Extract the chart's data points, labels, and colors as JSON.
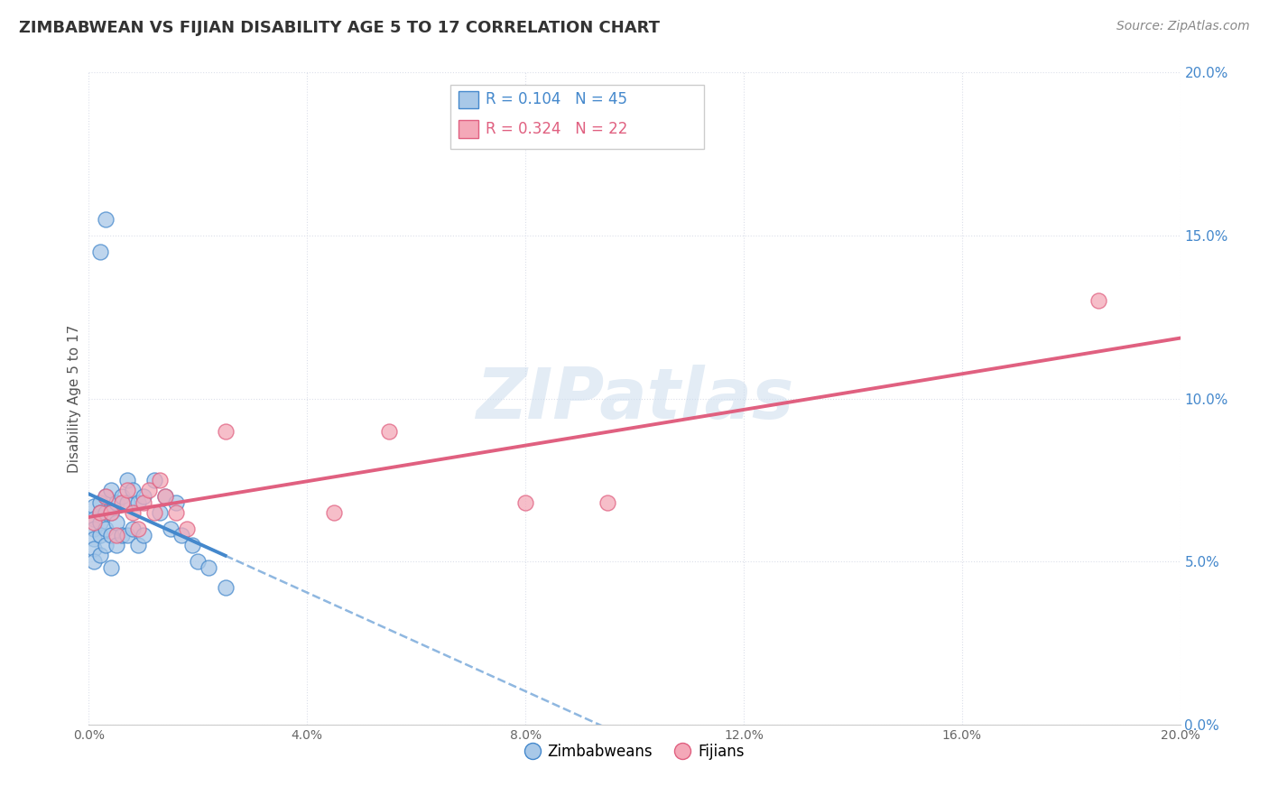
{
  "title": "ZIMBABWEAN VS FIJIAN DISABILITY AGE 5 TO 17 CORRELATION CHART",
  "source": "Source: ZipAtlas.com",
  "ylabel": "Disability Age 5 to 17",
  "xlim": [
    0.0,
    0.2
  ],
  "ylim": [
    0.0,
    0.2
  ],
  "xticks": [
    0.0,
    0.04,
    0.08,
    0.12,
    0.16,
    0.2
  ],
  "yticks": [
    0.0,
    0.05,
    0.1,
    0.15,
    0.2
  ],
  "zimbabwean_color": "#a8c8e8",
  "fijian_color": "#f4a8b8",
  "trend_zimbabwean_color": "#4488cc",
  "trend_fijian_color": "#e06080",
  "r_zimbabwean": 0.104,
  "n_zimbabwean": 45,
  "r_fijian": 0.324,
  "n_fijian": 22,
  "watermark": "ZIPatlas",
  "background_color": "#ffffff",
  "grid_color": "#d8dce8",
  "zimbabwean_x": [
    0.001,
    0.001,
    0.001,
    0.001,
    0.001,
    0.001,
    0.002,
    0.002,
    0.002,
    0.002,
    0.002,
    0.003,
    0.003,
    0.003,
    0.003,
    0.004,
    0.004,
    0.004,
    0.004,
    0.005,
    0.005,
    0.005,
    0.006,
    0.006,
    0.007,
    0.007,
    0.007,
    0.008,
    0.008,
    0.009,
    0.009,
    0.01,
    0.01,
    0.012,
    0.013,
    0.014,
    0.015,
    0.016,
    0.017,
    0.019,
    0.02,
    0.022,
    0.025,
    0.003,
    0.002
  ],
  "zimbabwean_y": [
    0.067,
    0.063,
    0.06,
    0.057,
    0.054,
    0.05,
    0.068,
    0.065,
    0.062,
    0.058,
    0.052,
    0.07,
    0.065,
    0.06,
    0.055,
    0.072,
    0.065,
    0.058,
    0.048,
    0.068,
    0.062,
    0.055,
    0.07,
    0.058,
    0.075,
    0.068,
    0.058,
    0.072,
    0.06,
    0.068,
    0.055,
    0.07,
    0.058,
    0.075,
    0.065,
    0.07,
    0.06,
    0.068,
    0.058,
    0.055,
    0.05,
    0.048,
    0.042,
    0.155,
    0.145
  ],
  "fijian_x": [
    0.001,
    0.002,
    0.003,
    0.004,
    0.005,
    0.006,
    0.007,
    0.008,
    0.009,
    0.01,
    0.011,
    0.012,
    0.013,
    0.014,
    0.016,
    0.018,
    0.025,
    0.045,
    0.055,
    0.08,
    0.095,
    0.185
  ],
  "fijian_y": [
    0.062,
    0.065,
    0.07,
    0.065,
    0.058,
    0.068,
    0.072,
    0.065,
    0.06,
    0.068,
    0.072,
    0.065,
    0.075,
    0.07,
    0.065,
    0.06,
    0.09,
    0.065,
    0.09,
    0.068,
    0.068,
    0.13
  ]
}
